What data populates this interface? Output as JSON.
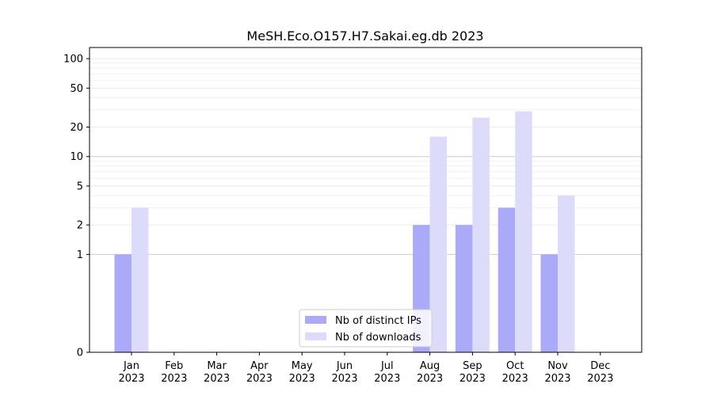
{
  "chart_data": {
    "type": "bar",
    "title": "MeSH.Eco.O157.H7.Sakai.eg.db 2023",
    "xlabel": "",
    "ylabel": "",
    "yscale": "symlog",
    "ylim": [
      0,
      130
    ],
    "yticks": [
      {
        "value": 0,
        "label": "0"
      },
      {
        "value": 1,
        "label": "1"
      },
      {
        "value": 2,
        "label": "2"
      },
      {
        "value": 5,
        "label": "5"
      },
      {
        "value": 10,
        "label": "10"
      },
      {
        "value": 20,
        "label": "20"
      },
      {
        "value": 50,
        "label": "50"
      },
      {
        "value": 100,
        "label": "100"
      }
    ],
    "grid": true,
    "legend_position": "bottom-center",
    "categories": [
      [
        "Jan",
        "2023"
      ],
      [
        "Feb",
        "2023"
      ],
      [
        "Mar",
        "2023"
      ],
      [
        "Apr",
        "2023"
      ],
      [
        "May",
        "2023"
      ],
      [
        "Jun",
        "2023"
      ],
      [
        "Jul",
        "2023"
      ],
      [
        "Aug",
        "2023"
      ],
      [
        "Sep",
        "2023"
      ],
      [
        "Oct",
        "2023"
      ],
      [
        "Nov",
        "2023"
      ],
      [
        "Dec",
        "2023"
      ]
    ],
    "series": [
      {
        "name": "Nb of distinct IPs",
        "color": "#aaaaf8",
        "values": [
          1,
          0,
          0,
          0,
          0,
          0,
          0,
          2,
          2,
          3,
          1,
          0
        ]
      },
      {
        "name": "Nb of downloads",
        "color": "#dcdcfa",
        "values": [
          3,
          0,
          0,
          0,
          0,
          0,
          0,
          16,
          25,
          29,
          4,
          0
        ]
      }
    ]
  }
}
